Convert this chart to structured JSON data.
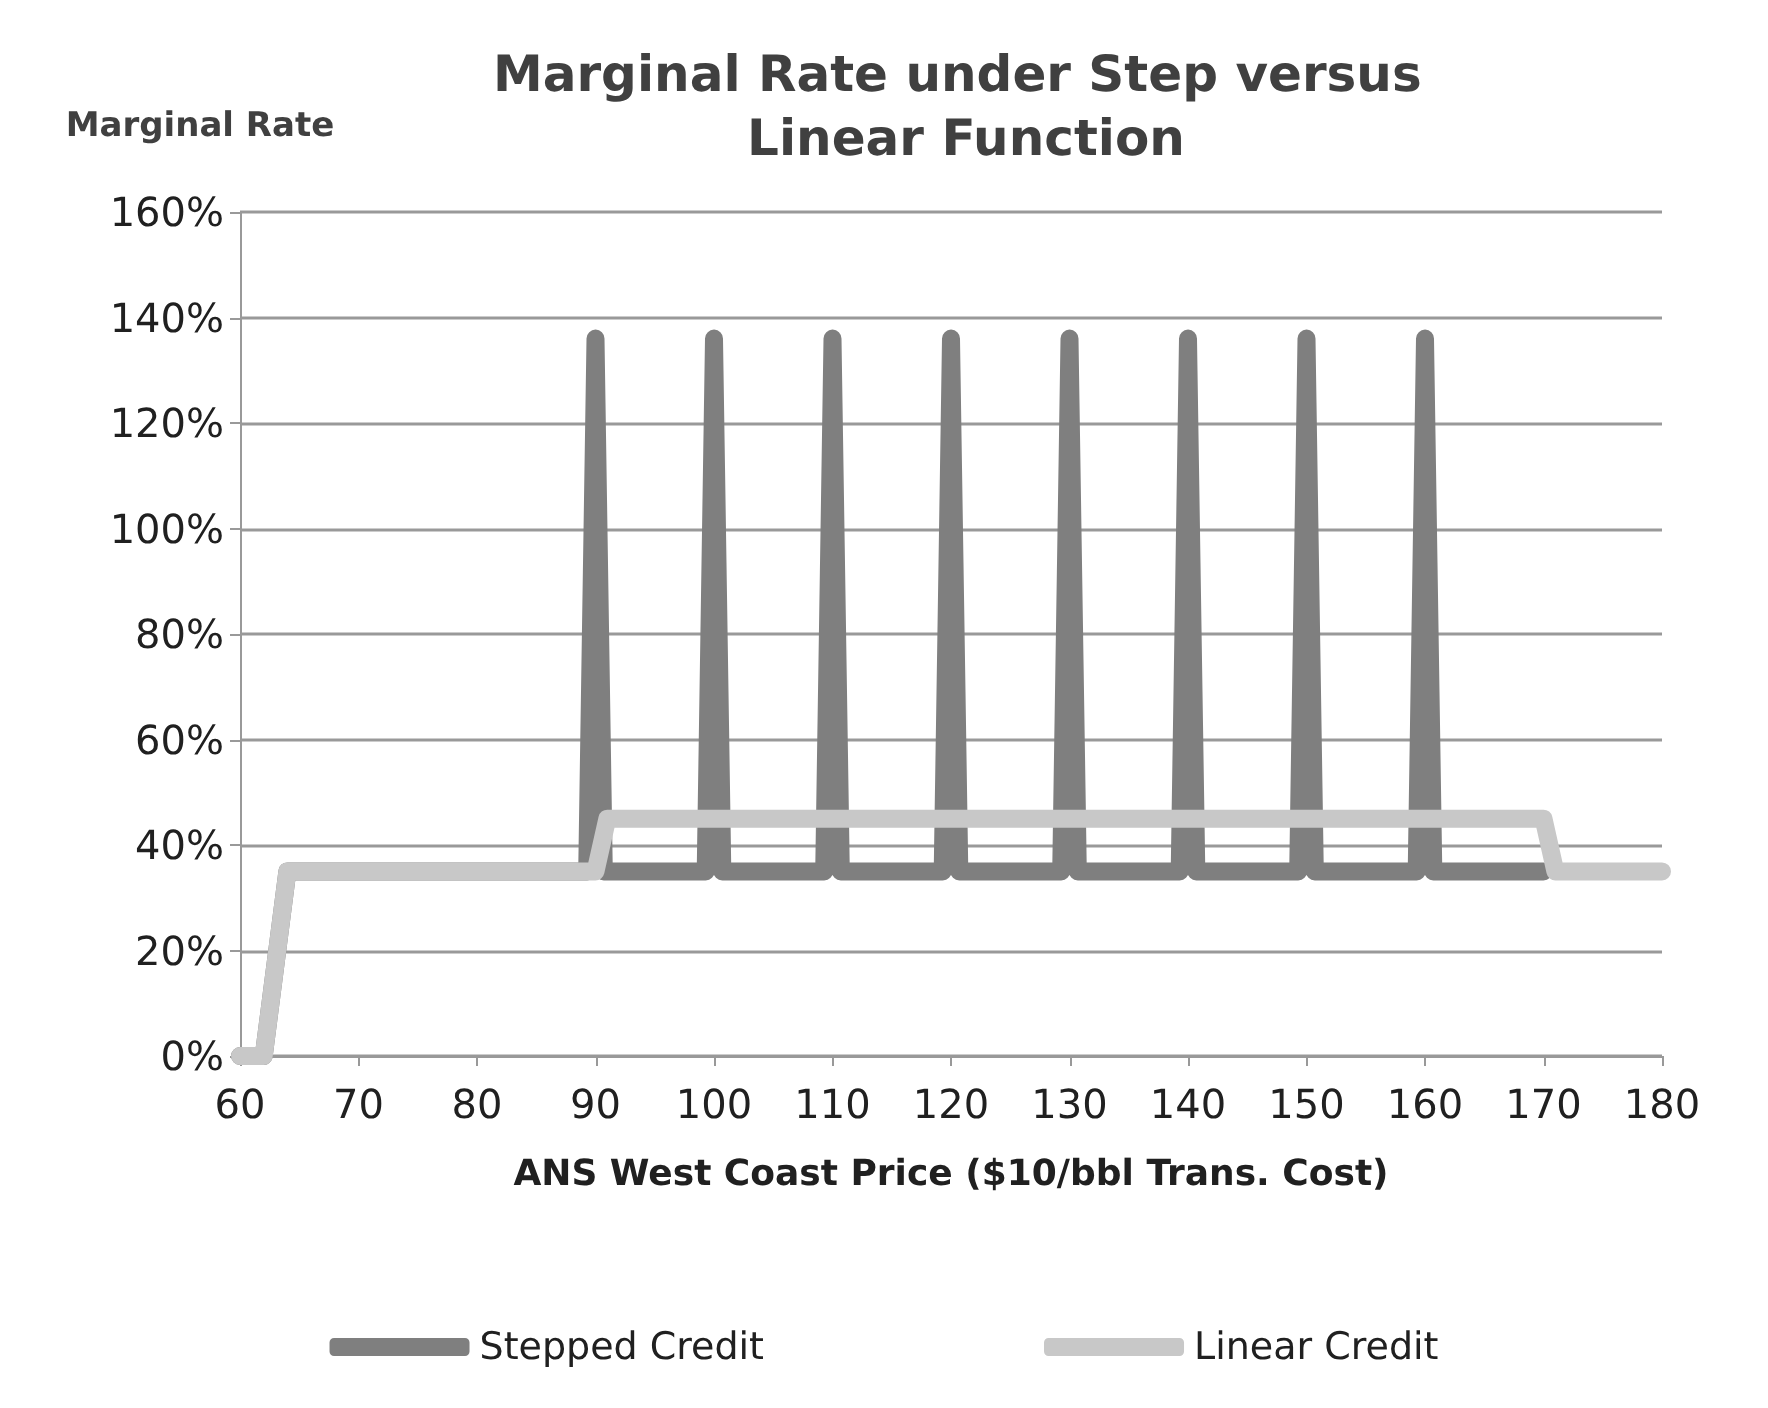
{
  "chart_data": {
    "type": "line",
    "title": "Marginal Rate under Step versus Linear Function",
    "xlabel": "ANS West Coast Price ($10/bbl Trans. Cost)",
    "ylabel": "Marginal Rate",
    "xlim": [
      60,
      180
    ],
    "xticks": [
      60,
      70,
      80,
      90,
      100,
      110,
      120,
      130,
      140,
      150,
      160,
      170,
      180
    ],
    "ylim": [
      0,
      160
    ],
    "yticks": [
      {
        "value": 0,
        "label": "0%"
      },
      {
        "value": 20,
        "label": "20%"
      },
      {
        "value": 40,
        "label": "40%"
      },
      {
        "value": 60,
        "label": "60%"
      },
      {
        "value": 80,
        "label": "80%"
      },
      {
        "value": 100,
        "label": "100%"
      },
      {
        "value": 120,
        "label": "120%"
      },
      {
        "value": 140,
        "label": "140%"
      },
      {
        "value": 160,
        "label": "160%"
      }
    ],
    "grid": "y",
    "legend": "bottom",
    "marker": "none",
    "series": [
      {
        "name": "Stepped Credit",
        "color": "#7f7f7f",
        "x": [
          60,
          62,
          64,
          89.3,
          90,
          90.7,
          99.3,
          100,
          100.7,
          109.3,
          110,
          110.7,
          119.3,
          120,
          120.7,
          129.3,
          130,
          130.7,
          139.3,
          140,
          140.7,
          149.3,
          150,
          150.7,
          159.3,
          160,
          160.7,
          170
        ],
        "values": [
          0,
          0,
          35,
          35,
          136,
          35,
          35,
          136,
          35,
          35,
          136,
          35,
          35,
          136,
          35,
          35,
          136,
          35,
          35,
          136,
          35,
          35,
          136,
          35,
          35,
          136,
          35,
          35
        ]
      },
      {
        "name": "Linear Credit",
        "color": "#c8c8c8",
        "x": [
          60,
          62,
          64,
          90,
          91,
          170,
          171,
          180
        ],
        "values": [
          0,
          0,
          35,
          35,
          45,
          45,
          35,
          35
        ]
      }
    ]
  }
}
